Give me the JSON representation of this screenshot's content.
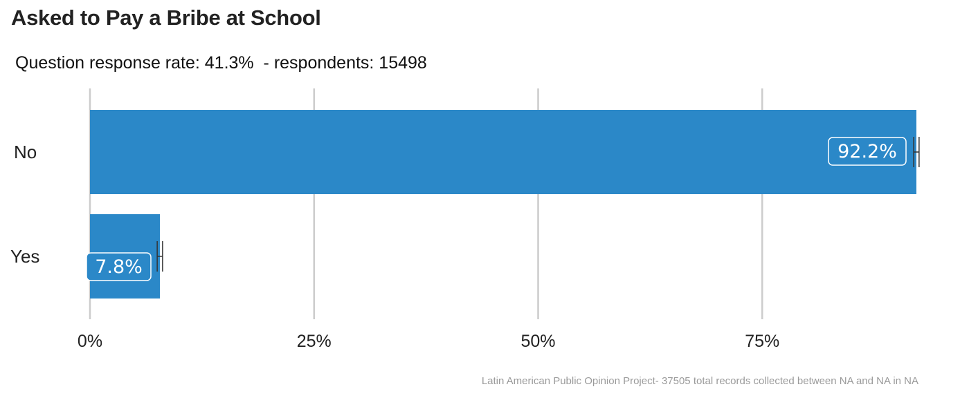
{
  "chart_data": {
    "type": "bar",
    "orientation": "horizontal",
    "title": "Asked to Pay a Bribe at School",
    "subtitle": "Question response rate: 41.3%  - respondents: 15498",
    "caption": "Latin American Public Opinion Project- 37505 total records collected between NA and NA in  NA",
    "categories": [
      "No",
      "Yes"
    ],
    "values": [
      92.2,
      7.8
    ],
    "data_labels": [
      "92.2%",
      "7.8%"
    ],
    "error_bars": [
      [
        91.9,
        92.5
      ],
      [
        7.5,
        8.1
      ]
    ],
    "xlim": [
      0,
      100
    ],
    "ticks": [
      0,
      25,
      50,
      75
    ],
    "tick_labels": [
      "0%",
      "25%",
      "50%",
      "75%"
    ],
    "grid": "vertical",
    "bar_color": "#2b88c8",
    "grid_color": "#cccccc"
  }
}
